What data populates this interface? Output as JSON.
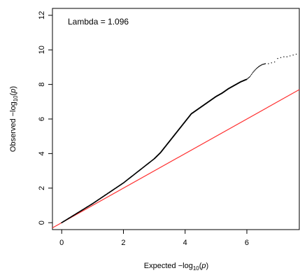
{
  "chart_data": {
    "type": "scatter",
    "annotation": "Lambda = 1.096",
    "xlabel": {
      "prefix": "Expected  −log",
      "sub": "10",
      "open": "(",
      "var": "p",
      "close": ")"
    },
    "ylabel": {
      "prefix": "Observed  −log",
      "sub": "10",
      "open": "(",
      "var": "p",
      "close": ")"
    },
    "xlim": [
      -0.3,
      7.7
    ],
    "ylim": [
      -0.4,
      12.4
    ],
    "x_ticks": [
      0,
      2,
      4,
      6
    ],
    "y_ticks": [
      0,
      2,
      4,
      6,
      8,
      10,
      12
    ],
    "grid": false,
    "reference_line": {
      "slope": 1.0,
      "intercept": 0,
      "color": "#ff3030"
    },
    "point_color": "#000000",
    "series": [
      {
        "x": [
          0,
          0.5,
          1.0,
          1.5,
          2.0,
          2.5,
          3.0,
          3.2,
          3.4,
          3.6,
          3.8,
          4.0,
          4.2,
          4.4,
          4.6,
          4.8,
          5.0,
          5.2,
          5.4,
          5.6,
          5.8,
          6.0,
          6.1,
          6.2,
          6.3,
          6.4,
          6.5,
          6.6,
          6.7,
          6.8,
          6.9,
          7.0,
          7.1,
          7.2,
          7.3,
          7.4,
          7.5,
          7.6
        ],
        "y": [
          0,
          0.55,
          1.1,
          1.7,
          2.3,
          3.0,
          3.7,
          4.05,
          4.5,
          4.95,
          5.4,
          5.85,
          6.3,
          6.55,
          6.8,
          7.05,
          7.3,
          7.5,
          7.75,
          7.95,
          8.15,
          8.3,
          8.45,
          8.7,
          8.9,
          9.05,
          9.15,
          9.2,
          9.2,
          9.25,
          9.3,
          9.5,
          9.55,
          9.6,
          9.6,
          9.65,
          9.7,
          9.75
        ]
      }
    ]
  }
}
